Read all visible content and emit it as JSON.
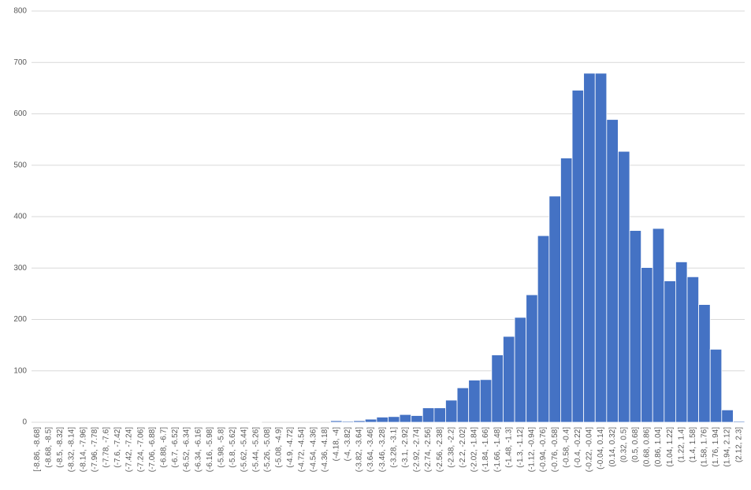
{
  "chart_data": {
    "type": "bar",
    "categories": [
      "[-8.86, -8.68]",
      "(-8.68, -8.5]",
      "(-8.5, -8.32]",
      "(-8.32, -8.14]",
      "(-8.14, -7.96]",
      "(-7.96, -7.78]",
      "(-7.78, -7.6]",
      "(-7.6, -7.42]",
      "(-7.42, -7.24]",
      "(-7.24, -7.06]",
      "(-7.06, -6.88]",
      "(-6.88, -6.7]",
      "(-6.7, -6.52]",
      "(-6.52, -6.34]",
      "(-6.34, -6.16]",
      "(-6.16, -5.98]",
      "(-5.98, -5.8]",
      "(-5.8, -5.62]",
      "(-5.62, -5.44]",
      "(-5.44, -5.26]",
      "(-5.26, -5.08]",
      "(-5.08, -4.9]",
      "(-4.9, -4.72]",
      "(-4.72, -4.54]",
      "(-4.54, -4.36]",
      "(-4.36, -4.18]",
      "(-4.18, -4]",
      "(-4, -3.82]",
      "(-3.82, -3.64]",
      "(-3.64, -3.46]",
      "(-3.46, -3.28]",
      "(-3.28, -3.1]",
      "(-3.1, -2.92]",
      "(-2.92, -2.74]",
      "(-2.74, -2.56]",
      "(-2.56, -2.38]",
      "(-2.38, -2.2]",
      "(-2.2, -2.02]",
      "(-2.02, -1.84]",
      "(-1.84, -1.66]",
      "(-1.66, -1.48]",
      "(-1.48, -1.3]",
      "(-1.3, -1.12]",
      "(-1.12, -0.94]",
      "(-0.94, -0.76]",
      "(-0.76, -0.58]",
      "(-0.58, -0.4]",
      "(-0.4, -0.22]",
      "(-0.22, -0.04]",
      "(-0.04, 0.14]",
      "(0.14, 0.32]",
      "(0.32, 0.5]",
      "(0.5, 0.68]",
      "(0.68, 0.86]",
      "(0.86, 1.04]",
      "(1.04, 1.22]",
      "(1.22, 1.4]",
      "(1.4, 1.58]",
      "(1.58, 1.76]",
      "(1.76, 1.94]",
      "(1.94, 2.12]",
      "(2.12, 2.3]"
    ],
    "values": [
      0,
      0,
      0,
      0,
      0,
      0,
      0,
      0,
      0,
      0,
      0,
      0,
      0,
      0,
      0,
      0,
      0,
      0,
      0,
      1,
      0,
      0,
      0,
      0,
      0,
      0,
      3,
      2,
      3,
      6,
      10,
      11,
      15,
      13,
      28,
      28,
      43,
      67,
      82,
      83,
      131,
      167,
      204,
      248,
      363,
      440,
      514,
      646,
      679,
      679,
      589,
      527,
      373,
      301,
      377,
      275,
      312,
      283,
      229,
      142,
      24,
      2
    ],
    "color": "#4472c4",
    "ylim": [
      0,
      800
    ],
    "yticks": [
      0,
      100,
      200,
      300,
      400,
      500,
      600,
      700,
      800
    ],
    "grid": true
  }
}
